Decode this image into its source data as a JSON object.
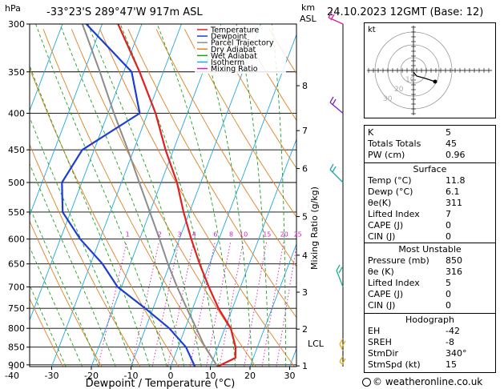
{
  "header": {
    "hpa_unit": "hPa",
    "location": "-33°23'S  289°47'W  917m  ASL",
    "km_unit": "km",
    "km_sub": "ASL",
    "datetime": "24.10.2023  12GMT  (Base: 12)"
  },
  "chart_data": {
    "type": "skew-t",
    "xlabel": "Dewpoint / Temperature (°C)",
    "ylabel_left": "hPa",
    "ylabel_right": "Mixing Ratio (g/kg)",
    "x_ticks": [
      -40,
      -30,
      -20,
      -10,
      0,
      10,
      20,
      30
    ],
    "pressure_levels": [
      300,
      350,
      400,
      450,
      500,
      550,
      600,
      650,
      700,
      750,
      800,
      850,
      900
    ],
    "km_ticks": [
      {
        "km": "1",
        "p": 903
      },
      {
        "km": "2",
        "p": 802
      },
      {
        "km": "3",
        "p": 712
      },
      {
        "km": "4",
        "p": 632
      },
      {
        "km": "5",
        "p": 558
      },
      {
        "km": "6",
        "p": 478
      },
      {
        "km": "7",
        "p": 423
      },
      {
        "km": "8",
        "p": 366
      }
    ],
    "lcl": {
      "label": "LCL",
      "p": 840
    },
    "mixing_ratio_labels": [
      "1",
      "2",
      "3",
      "4",
      "6",
      "8",
      "10",
      "15",
      "20",
      "25"
    ],
    "legend": [
      {
        "name": "Temperature",
        "color": "#e02020"
      },
      {
        "name": "Dewpoint",
        "color": "#1a3ed6"
      },
      {
        "name": "Parcel Trajectory",
        "color": "#8c8c8c"
      },
      {
        "name": "Dry Adiabat",
        "color": "#e08020"
      },
      {
        "name": "Wet Adiabat",
        "color": "#20a020"
      },
      {
        "name": "Isotherm",
        "color": "#20a8e0"
      },
      {
        "name": "Mixing Ratio",
        "color": "#d020c0"
      }
    ],
    "temperature": [
      {
        "p": 905,
        "t": 11.8
      },
      {
        "p": 880,
        "t": 15.5
      },
      {
        "p": 850,
        "t": 14.5
      },
      {
        "p": 800,
        "t": 11.5
      },
      {
        "p": 750,
        "t": 6.5
      },
      {
        "p": 700,
        "t": 2
      },
      {
        "p": 650,
        "t": -2.5
      },
      {
        "p": 600,
        "t": -7
      },
      {
        "p": 550,
        "t": -11.5
      },
      {
        "p": 500,
        "t": -16
      },
      {
        "p": 450,
        "t": -22
      },
      {
        "p": 400,
        "t": -28
      },
      {
        "p": 350,
        "t": -36
      },
      {
        "p": 300,
        "t": -46
      }
    ],
    "dewpoint": [
      {
        "p": 905,
        "t": 6.1
      },
      {
        "p": 850,
        "t": 2
      },
      {
        "p": 800,
        "t": -4
      },
      {
        "p": 750,
        "t": -12
      },
      {
        "p": 700,
        "t": -21
      },
      {
        "p": 650,
        "t": -27
      },
      {
        "p": 600,
        "t": -35
      },
      {
        "p": 550,
        "t": -42
      },
      {
        "p": 500,
        "t": -45
      },
      {
        "p": 450,
        "t": -43
      },
      {
        "p": 400,
        "t": -32
      },
      {
        "p": 350,
        "t": -38
      },
      {
        "p": 300,
        "t": -54
      }
    ],
    "parcel": [
      {
        "p": 905,
        "t": 11.8
      },
      {
        "p": 840,
        "t": 6
      },
      {
        "p": 800,
        "t": 2.8
      },
      {
        "p": 750,
        "t": -1.5
      },
      {
        "p": 700,
        "t": -6
      },
      {
        "p": 650,
        "t": -10.5
      },
      {
        "p": 600,
        "t": -15
      },
      {
        "p": 550,
        "t": -20
      },
      {
        "p": 500,
        "t": -25.5
      },
      {
        "p": 450,
        "t": -31.5
      },
      {
        "p": 400,
        "t": -38.5
      },
      {
        "p": 350,
        "t": -46
      },
      {
        "p": 300,
        "t": -55
      }
    ]
  },
  "hodograph": {
    "unit": "kt",
    "ring_labels": [
      "10",
      "20",
      "30"
    ]
  },
  "indices": [
    {
      "label": "K",
      "value": "5"
    },
    {
      "label": "Totals Totals",
      "value": "45"
    },
    {
      "label": "PW (cm)",
      "value": "0.96"
    }
  ],
  "surface": {
    "title": "Surface",
    "rows": [
      {
        "label": "Temp (°C)",
        "value": "11.8"
      },
      {
        "label": "Dewp (°C)",
        "value": "6.1"
      },
      {
        "label": "θe(K)",
        "value": "311"
      },
      {
        "label": "Lifted Index",
        "value": "7"
      },
      {
        "label": "CAPE (J)",
        "value": "0"
      },
      {
        "label": "CIN (J)",
        "value": "0"
      }
    ]
  },
  "most_unstable": {
    "title": "Most Unstable",
    "rows": [
      {
        "label": "Pressure (mb)",
        "value": "850"
      },
      {
        "label": "θe (K)",
        "value": "316"
      },
      {
        "label": "Lifted Index",
        "value": "5"
      },
      {
        "label": "CAPE (J)",
        "value": "0"
      },
      {
        "label": "CIN (J)",
        "value": "0"
      }
    ]
  },
  "hodograph_table": {
    "title": "Hodograph",
    "rows": [
      {
        "label": "EH",
        "value": "-42"
      },
      {
        "label": "SREH",
        "value": "-8"
      },
      {
        "label": "StmDir",
        "value": "340°"
      },
      {
        "label": "StmSpd (kt)",
        "value": "15"
      }
    ]
  },
  "credit": "© weatheronline.co.uk",
  "colors": {
    "temperature": "#e02020",
    "dewpoint": "#1a3ed6",
    "parcel": "#8c8c8c",
    "dry": "#e08020",
    "wet": "#20a020",
    "isotherm": "#20a8e0",
    "mixing": "#d020c0"
  }
}
